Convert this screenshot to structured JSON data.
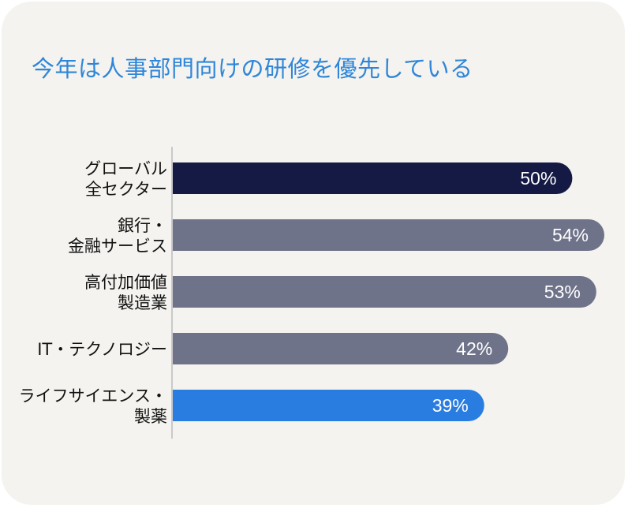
{
  "chart_data": {
    "type": "bar",
    "orientation": "horizontal",
    "title": "今年は人事部門向けの研修を優先している",
    "categories": [
      [
        "グローバル",
        "全セクター"
      ],
      [
        "銀行・",
        "金融サービス"
      ],
      [
        "高付加価値",
        "製造業"
      ],
      [
        "IT・テクノロジー"
      ],
      [
        "ライフサイエンス・",
        "製薬"
      ]
    ],
    "values": [
      50,
      54,
      53,
      42,
      39
    ],
    "value_labels": [
      "50%",
      "54%",
      "53%",
      "42%",
      "39%"
    ],
    "unit": "%",
    "colors": [
      "#141a44",
      "#6f7389",
      "#6f7389",
      "#6f7389",
      "#2a7de0"
    ],
    "xlim": [
      0,
      54
    ],
    "grid": false,
    "legend": "none"
  }
}
